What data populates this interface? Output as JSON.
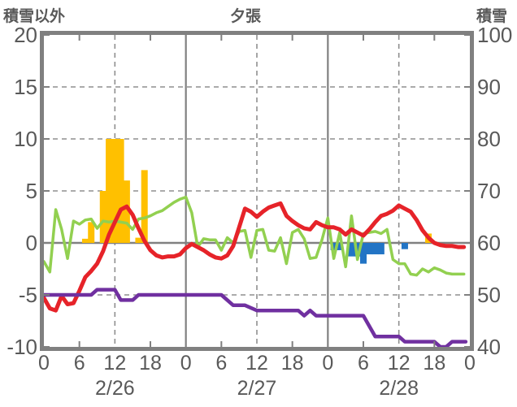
{
  "header": {
    "title": "夕張",
    "left_axis_label": "積雪以外",
    "right_axis_label": "積雪"
  },
  "colors": {
    "red": "#e62329",
    "green": "#92d050",
    "purple": "#7030a0",
    "orange": "#ffc000",
    "blue": "#2274c5",
    "border": "#808080",
    "grid": "#8f8f8f",
    "text": "#595959",
    "background": "#ffffff"
  },
  "chart_data": {
    "type": "line",
    "title": "夕張",
    "subtitle": "",
    "left_axis": {
      "label": "積雪以外",
      "min": -10,
      "max": 20,
      "ticks": [
        20,
        15,
        10,
        5,
        0,
        -5,
        -10
      ]
    },
    "right_axis": {
      "label": "積雪",
      "min": 40,
      "max": 100,
      "ticks": [
        100,
        90,
        80,
        70,
        60,
        50,
        40
      ]
    },
    "x_axis": {
      "unit": "hour",
      "min": 0,
      "max": 72,
      "tick_step": 6,
      "tick_labels": [
        "0",
        "6",
        "12",
        "18",
        "0",
        "6",
        "12",
        "18",
        "0",
        "6",
        "12",
        "18",
        "0"
      ],
      "minor_tick_hours": [
        6,
        18,
        30,
        42,
        54,
        66
      ],
      "date_labels": [
        {
          "label": "2/26",
          "hour": 12
        },
        {
          "label": "2/27",
          "hour": 36
        },
        {
          "label": "2/28",
          "hour": 60
        }
      ]
    },
    "gridlines": {
      "h_dashed": [
        15,
        10,
        5,
        -5
      ],
      "h_solid": [
        0
      ],
      "v_dashed": [
        12,
        36,
        60
      ],
      "v_solid": [
        24,
        48
      ]
    },
    "bars": [
      {
        "name": "orange-bars",
        "color_key": "orange",
        "axis": "left",
        "values": [
          [
            7,
            0.4
          ],
          [
            8,
            2
          ],
          [
            10,
            5
          ],
          [
            11,
            10
          ],
          [
            12,
            10
          ],
          [
            13,
            10
          ],
          [
            14,
            6
          ],
          [
            16,
            0.5
          ],
          [
            17,
            7
          ],
          [
            65,
            0.9
          ]
        ]
      },
      {
        "name": "blue-bars",
        "color_key": "blue",
        "axis": "left",
        "values": [
          [
            49,
            -0.7
          ],
          [
            50,
            -0.7
          ],
          [
            52,
            -1.3
          ],
          [
            53,
            -1.3
          ],
          [
            54,
            -2.0
          ],
          [
            55,
            -1.1
          ],
          [
            56,
            -1.1
          ],
          [
            57,
            -1.1
          ],
          [
            61,
            -0.6
          ]
        ]
      }
    ],
    "series": [
      {
        "name": "green-line",
        "color_key": "green",
        "axis": "left",
        "width": 3.5,
        "points": [
          [
            0,
            -1.8
          ],
          [
            1,
            -2.8
          ],
          [
            2,
            3.2
          ],
          [
            3,
            1.3
          ],
          [
            4,
            -1.5
          ],
          [
            5,
            2.1
          ],
          [
            6,
            1.8
          ],
          [
            7,
            2.2
          ],
          [
            8,
            2.3
          ],
          [
            9,
            1.4
          ],
          [
            10,
            2.1
          ],
          [
            11,
            2.0
          ],
          [
            12,
            2.1
          ],
          [
            13,
            2.0
          ],
          [
            14,
            1.9
          ],
          [
            15,
            1.3
          ],
          [
            16,
            2.3
          ],
          [
            17,
            2.4
          ],
          [
            18,
            2.6
          ],
          [
            19,
            2.9
          ],
          [
            20,
            3.1
          ],
          [
            21,
            3.5
          ],
          [
            22,
            3.9
          ],
          [
            23,
            4.2
          ],
          [
            24,
            4.4
          ],
          [
            25,
            2.9
          ],
          [
            26,
            -0.4
          ],
          [
            27,
            0.4
          ],
          [
            28,
            0.3
          ],
          [
            29,
            0.3
          ],
          [
            30,
            -0.7
          ],
          [
            31,
            0.5
          ],
          [
            32,
            0.0
          ],
          [
            33,
            1.1
          ],
          [
            34,
            1.2
          ],
          [
            35,
            -1.4
          ],
          [
            36,
            1.2
          ],
          [
            37,
            1.3
          ],
          [
            38,
            -0.7
          ],
          [
            39,
            -0.8
          ],
          [
            40,
            0.5
          ],
          [
            41,
            -2.0
          ],
          [
            42,
            1.0
          ],
          [
            43,
            1.3
          ],
          [
            44,
            0.4
          ],
          [
            45,
            -1.5
          ],
          [
            46,
            -1.4
          ],
          [
            47,
            0.3
          ],
          [
            48,
            2.4
          ],
          [
            49,
            -1.5
          ],
          [
            50,
            1.0
          ],
          [
            51,
            -2.3
          ],
          [
            52,
            2.6
          ],
          [
            53,
            -1.6
          ],
          [
            54,
            0.9
          ],
          [
            55,
            1.0
          ],
          [
            56,
            1.1
          ],
          [
            57,
            0.9
          ],
          [
            58,
            1.3
          ],
          [
            59,
            -1.6
          ],
          [
            60,
            -2.0
          ],
          [
            61,
            -2.0
          ],
          [
            62,
            -3.0
          ],
          [
            63,
            -3.1
          ],
          [
            64,
            -2.5
          ],
          [
            65,
            -2.8
          ],
          [
            66,
            -2.4
          ],
          [
            67,
            -2.6
          ],
          [
            68,
            -2.9
          ],
          [
            69,
            -3.0
          ],
          [
            70,
            -3.0
          ],
          [
            71,
            -3.0
          ]
        ]
      },
      {
        "name": "red-line",
        "color_key": "red",
        "axis": "left",
        "width": 5,
        "points": [
          [
            0,
            -5.3
          ],
          [
            1,
            -6.3
          ],
          [
            2,
            -6.5
          ],
          [
            3,
            -5.1
          ],
          [
            4,
            -5.9
          ],
          [
            5,
            -5.8
          ],
          [
            6,
            -4.6
          ],
          [
            7,
            -3.3
          ],
          [
            8,
            -2.7
          ],
          [
            9,
            -2.0
          ],
          [
            10,
            -0.8
          ],
          [
            11,
            0.8
          ],
          [
            12,
            2.0
          ],
          [
            13,
            3.2
          ],
          [
            14,
            3.5
          ],
          [
            15,
            2.7
          ],
          [
            16,
            1.4
          ],
          [
            17,
            0.2
          ],
          [
            18,
            -0.7
          ],
          [
            19,
            -1.2
          ],
          [
            20,
            -1.4
          ],
          [
            21,
            -1.3
          ],
          [
            22,
            -1.3
          ],
          [
            23,
            -1.1
          ],
          [
            24,
            -0.5
          ],
          [
            25,
            -0.1
          ],
          [
            26,
            -0.4
          ],
          [
            27,
            -0.7
          ],
          [
            28,
            -1.1
          ],
          [
            29,
            -1.4
          ],
          [
            30,
            -1.5
          ],
          [
            31,
            -1.2
          ],
          [
            32,
            -0.3
          ],
          [
            33,
            1.5
          ],
          [
            34,
            3.3
          ],
          [
            35,
            3.0
          ],
          [
            36,
            2.5
          ],
          [
            37,
            3.0
          ],
          [
            38,
            3.4
          ],
          [
            39,
            3.6
          ],
          [
            40,
            3.8
          ],
          [
            41,
            2.6
          ],
          [
            42,
            2.1
          ],
          [
            43,
            1.7
          ],
          [
            44,
            1.4
          ],
          [
            45,
            1.3
          ],
          [
            46,
            2.0
          ],
          [
            47,
            1.7
          ],
          [
            48,
            1.5
          ],
          [
            49,
            1.5
          ],
          [
            50,
            1.3
          ],
          [
            51,
            0.8
          ],
          [
            52,
            1.3
          ],
          [
            53,
            1.0
          ],
          [
            54,
            0.7
          ],
          [
            55,
            1.3
          ],
          [
            56,
            2.0
          ],
          [
            57,
            2.6
          ],
          [
            58,
            2.8
          ],
          [
            59,
            3.1
          ],
          [
            60,
            3.6
          ],
          [
            61,
            3.3
          ],
          [
            62,
            3.0
          ],
          [
            63,
            2.2
          ],
          [
            64,
            1.2
          ],
          [
            65,
            0.5
          ],
          [
            66,
            0.0
          ],
          [
            67,
            -0.2
          ],
          [
            68,
            -0.3
          ],
          [
            69,
            -0.3
          ],
          [
            70,
            -0.4
          ],
          [
            71,
            -0.4
          ]
        ]
      },
      {
        "name": "purple-line",
        "color_key": "purple",
        "axis": "right",
        "width": 4.5,
        "points": [
          [
            0,
            50
          ],
          [
            8,
            50
          ],
          [
            9,
            51
          ],
          [
            12,
            51
          ],
          [
            13,
            49
          ],
          [
            15,
            49
          ],
          [
            16,
            50
          ],
          [
            30,
            50
          ],
          [
            32,
            48
          ],
          [
            34,
            48
          ],
          [
            36,
            47
          ],
          [
            43,
            47
          ],
          [
            44,
            46
          ],
          [
            45,
            47
          ],
          [
            46,
            46
          ],
          [
            54,
            46
          ],
          [
            56,
            42
          ],
          [
            60,
            42
          ],
          [
            61,
            41
          ],
          [
            66,
            41
          ],
          [
            67,
            40
          ],
          [
            68,
            40
          ],
          [
            69,
            41
          ],
          [
            71.3,
            41
          ]
        ]
      }
    ]
  }
}
